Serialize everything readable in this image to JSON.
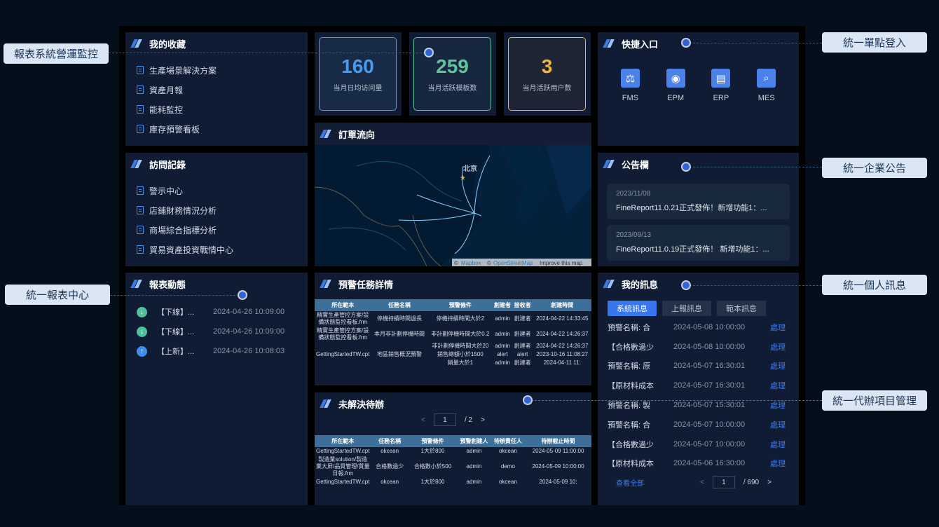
{
  "annotations": {
    "left": [
      "報表系統營運監控",
      "統一報表中心"
    ],
    "right": [
      "統一單點登入",
      "統一企業公告",
      "統一個人訊息",
      "統一代辦項目管理"
    ]
  },
  "favorites": {
    "title": "我的收藏",
    "items": [
      "生產場景解決方案",
      "資產月報",
      "能耗監控",
      "庫存預警看板"
    ]
  },
  "visits": {
    "title": "訪問記錄",
    "items": [
      "警示中心",
      "店鋪財務情況分析",
      "商場綜合指標分析",
      "貿易資產投資戰情中心"
    ]
  },
  "report_activity": {
    "title": "報表動態",
    "items": [
      {
        "type": "down",
        "label": "【下線】...",
        "time": "2024-04-26 10:09:00"
      },
      {
        "type": "down",
        "label": "【下線】...",
        "time": "2024-04-26 10:09:00"
      },
      {
        "type": "up",
        "label": "【上新】...",
        "time": "2024-04-26 10:08:03"
      }
    ]
  },
  "stats": [
    {
      "value": "160",
      "label": "当月日均访问量",
      "color": "#4a9bf0"
    },
    {
      "value": "259",
      "label": "当月活跃模板数",
      "color": "#5fc49a"
    },
    {
      "value": "3",
      "label": "当月活跃用户数",
      "color": "#f3b43a"
    }
  ],
  "order_flow": {
    "title": "訂單流向",
    "city": "北京",
    "attribution": {
      "mapbox": "Mapbox",
      "osm": "OpenStreetMap",
      "improve": "Improve this map"
    }
  },
  "alert_tasks": {
    "title": "預警任務詳情",
    "columns": [
      "所在範本",
      "任務名稱",
      "預警條件",
      "創建者",
      "接收者",
      "創建時間"
    ],
    "rows": [
      [
        "精實生產管控方案/設備狀態監控看板.frm",
        "停機持續時間過長",
        "停機持續時間大於2",
        "admin",
        "創建者",
        "2024-04-22 14:33:45"
      ],
      [
        "精實生產管控方案/設備狀態監控看板.frm",
        "本月非計劃停機時間",
        "非計劃停機時間大於0.2",
        "admin",
        "創建者",
        "2024-04-22 14:26:37"
      ],
      [
        "",
        "",
        "非計劃停機時間大於20",
        "admin",
        "創建者",
        "2024-04-22 14:26:37"
      ],
      [
        "GettingStartedTW.cpt",
        "地區銷售概況預警",
        "銷售總額小於1500",
        "alert",
        "alert",
        "2023-10-16 11:08:27"
      ],
      [
        "",
        "",
        "銷量大於1",
        "admin",
        "創建者",
        "2024-04-11 11:"
      ]
    ]
  },
  "todo": {
    "title": "未解決待辦",
    "page": "1",
    "total": "/ 2",
    "columns": [
      "所在範本",
      "任務名稱",
      "預警條件",
      "預警創建人",
      "待辦責任人",
      "待辦截止時間"
    ],
    "rows": [
      [
        "GettingStartedTW.cpt",
        "okcean",
        "1大於800",
        "admin",
        "okcean",
        "2024-05-09 11:00:00"
      ],
      [
        "製造業solution/製造業大屏/品質管理/質量日報.frm",
        "合格數過少",
        "合格數小於500",
        "admin",
        "demo",
        "2024-05-09 10:00:00"
      ],
      [
        "GettingStartedTW.cpt",
        "okcean",
        "1大於800",
        "admin",
        "okcean",
        "2024-05-09 10:"
      ]
    ]
  },
  "quick_entry": {
    "title": "快捷入口",
    "items": [
      {
        "label": "FMS",
        "icon": "scale-icon"
      },
      {
        "label": "EPM",
        "icon": "gauge-icon"
      },
      {
        "label": "ERP",
        "icon": "document-icon"
      },
      {
        "label": "MES",
        "icon": "chart-search-icon"
      }
    ]
  },
  "notices": {
    "title": "公告欄",
    "items": [
      {
        "date": "2023/11/08",
        "text": "FineReport11.0.21正式發佈！新增功能1：..."
      },
      {
        "date": "2023/09/13",
        "text": "FineReport11.0.19正式發佈！ 新增功能1：..."
      }
    ]
  },
  "messages": {
    "title": "我的訊息",
    "tabs": [
      "系統訊息",
      "上報訊息",
      "範本訊息"
    ],
    "active_tab": "系統訊息",
    "action": "處理",
    "items": [
      [
        "預警名稱: 合",
        "2024-05-08 10:00:00"
      ],
      [
        " 【合格數過少",
        "2024-05-08 10:00:00"
      ],
      [
        "預警名稱: 原",
        "2024-05-07 16:30:01"
      ],
      [
        " 【原材料成本",
        "2024-05-07 16:30:01"
      ],
      [
        "預警名稱: 製",
        "2024-05-07 15:30:01"
      ],
      [
        "預警名稱: 合",
        "2024-05-07 10:00:00"
      ],
      [
        " 【合格數過少",
        "2024-05-07 10:00:00"
      ],
      [
        " 【原材料成本",
        "2024-05-06 16:30:00"
      ]
    ],
    "view_all": "查看全部",
    "page": "1",
    "total": "/ 690"
  }
}
